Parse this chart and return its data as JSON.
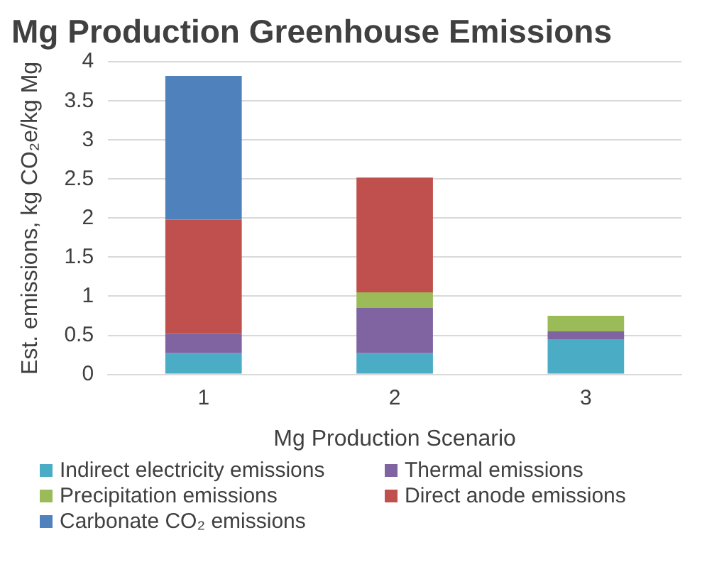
{
  "chart_data": {
    "type": "bar",
    "title": "Mg Production Greenhouse Emissions",
    "xlabel": "Mg Production Scenario",
    "ylabel": "Est. emissions, kg CO₂e/kg Mg",
    "categories": [
      "1",
      "2",
      "3"
    ],
    "stacked": true,
    "ylim": [
      0,
      4
    ],
    "yticks": [
      0,
      0.5,
      1,
      1.5,
      2,
      2.5,
      3,
      3.5,
      4
    ],
    "grid": "y",
    "legend": "bottom",
    "series": [
      {
        "name": "Indirect electricity emissions",
        "color": "#4bacc6",
        "values": [
          0.27,
          0.27,
          0.45
        ]
      },
      {
        "name": "Thermal emissions",
        "color": "#8064a2",
        "values": [
          0.25,
          0.58,
          0.1
        ]
      },
      {
        "name": "Precipitation emissions",
        "color": "#9bbb59",
        "values": [
          0,
          0.2,
          0.2
        ]
      },
      {
        "name": "Direct anode emissions",
        "color": "#c0504d",
        "values": [
          1.46,
          1.47,
          0
        ]
      },
      {
        "name": "Carbonate CO₂ emissions",
        "color": "#4f81bd",
        "values": [
          1.84,
          0,
          0
        ]
      }
    ]
  }
}
